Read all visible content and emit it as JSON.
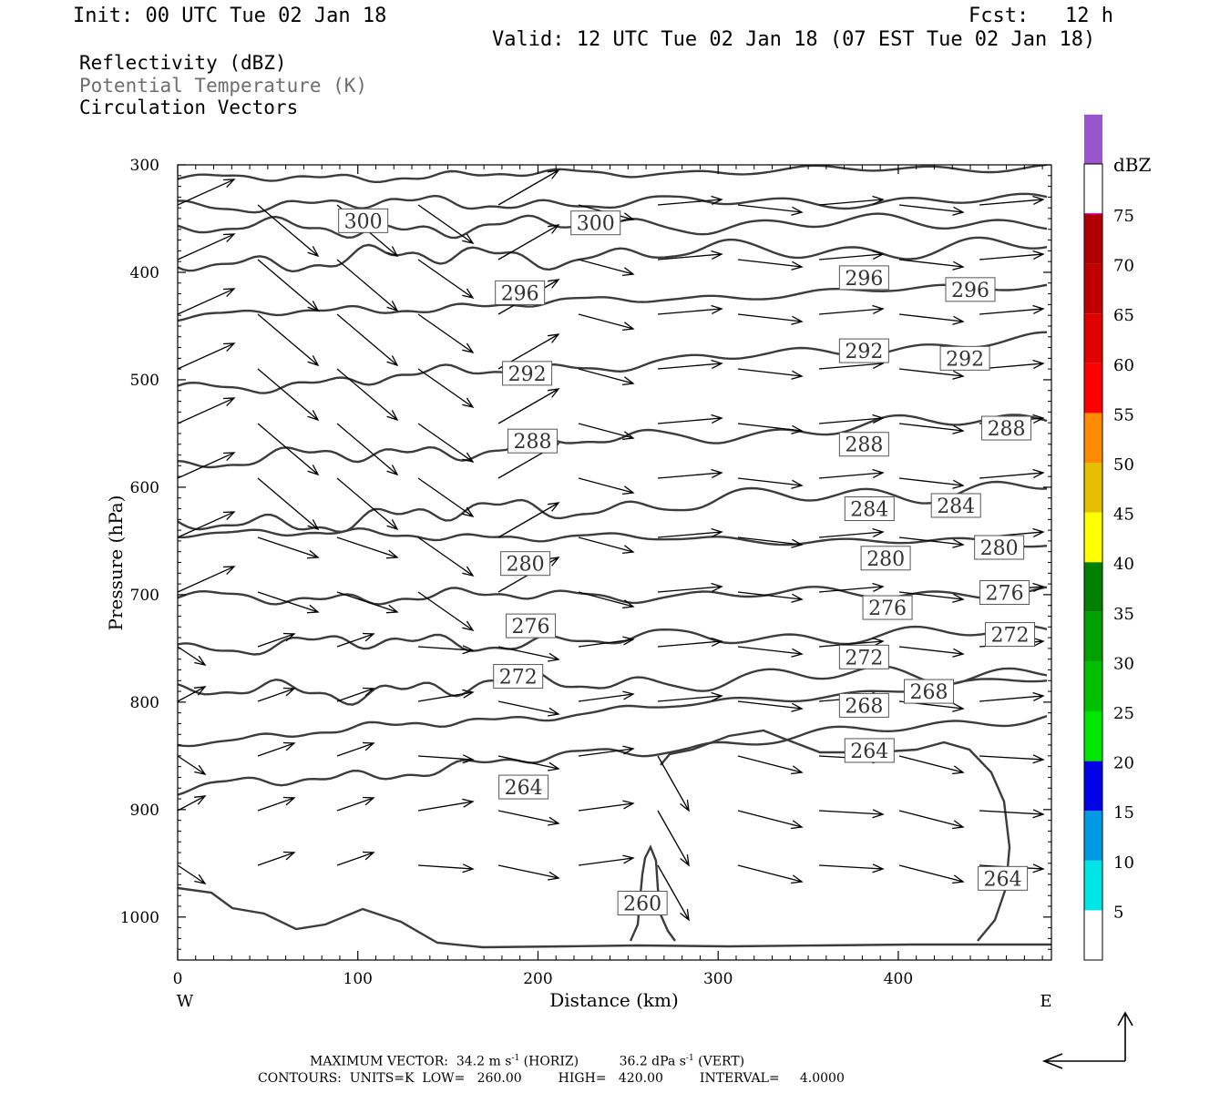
{
  "header": {
    "init": "Init: 00 UTC Tue 02 Jan 18",
    "fcst": "Fcst:   12 h",
    "valid": "Valid: 12 UTC Tue 02 Jan 18 (07 EST Tue 02 Jan 18)"
  },
  "fields": {
    "reflectivity": "Reflectivity (dBZ)",
    "theta": "Potential Temperature (K)",
    "vectors": "Circulation Vectors"
  },
  "colors": {
    "contour": "#3c3c3c",
    "vector": "#000000",
    "theta_legend": "#6e6e6e"
  },
  "chart_data": {
    "type": "contour",
    "xlabel": "Distance (km)",
    "ylabel": "Pressure (hPa)",
    "xlim": [
      0,
      485
    ],
    "ylim": [
      1040,
      300
    ],
    "x_ticks": [
      0,
      100,
      200,
      300,
      400
    ],
    "y_ticks": [
      300,
      400,
      500,
      600,
      700,
      800,
      900,
      1000
    ],
    "x_ends": {
      "left": "W",
      "right": "E"
    },
    "contour_labels": [
      {
        "v": "300",
        "x": 103,
        "p": 352
      },
      {
        "v": "300",
        "x": 232,
        "p": 354
      },
      {
        "v": "296",
        "x": 190,
        "p": 419
      },
      {
        "v": "296",
        "x": 381,
        "p": 405
      },
      {
        "v": "296",
        "x": 440,
        "p": 416
      },
      {
        "v": "292",
        "x": 194,
        "p": 494
      },
      {
        "v": "292",
        "x": 381,
        "p": 473
      },
      {
        "v": "292",
        "x": 437,
        "p": 480
      },
      {
        "v": "288",
        "x": 197,
        "p": 557
      },
      {
        "v": "288",
        "x": 381,
        "p": 560
      },
      {
        "v": "288",
        "x": 460,
        "p": 545
      },
      {
        "v": "284",
        "x": 384,
        "p": 620
      },
      {
        "v": "284",
        "x": 432,
        "p": 617
      },
      {
        "v": "280",
        "x": 193,
        "p": 671
      },
      {
        "v": "280",
        "x": 393,
        "p": 666
      },
      {
        "v": "280",
        "x": 456,
        "p": 656
      },
      {
        "v": "276",
        "x": 196,
        "p": 729
      },
      {
        "v": "276",
        "x": 394,
        "p": 712
      },
      {
        "v": "276",
        "x": 459,
        "p": 698
      },
      {
        "v": "272",
        "x": 189,
        "p": 776
      },
      {
        "v": "272",
        "x": 381,
        "p": 758
      },
      {
        "v": "272",
        "x": 462,
        "p": 737
      },
      {
        "v": "268",
        "x": 381,
        "p": 803
      },
      {
        "v": "268",
        "x": 417,
        "p": 790
      },
      {
        "v": "264",
        "x": 192,
        "p": 879
      },
      {
        "v": "264",
        "x": 384,
        "p": 845
      },
      {
        "v": "264",
        "x": 458,
        "p": 964
      },
      {
        "v": "260",
        "x": 258,
        "p": 987
      }
    ],
    "colorbar": {
      "title": "dBZ",
      "ticks": [
        "5",
        "10",
        "15",
        "20",
        "25",
        "30",
        "35",
        "40",
        "45",
        "50",
        "55",
        "60",
        "65",
        "70",
        "75"
      ],
      "colors": [
        "#00e5e5",
        "#0099e6",
        "#0000e6",
        "#00e600",
        "#00c000",
        "#00a000",
        "#008000",
        "#ffff00",
        "#e6c000",
        "#ff8c00",
        "#ff0000",
        "#e00000",
        "#c00000",
        "#b00000",
        "#ff00ff",
        "#9955cc",
        "#ffffff"
      ]
    },
    "footer": {
      "line1_prefix": "MAXIMUM VECTOR:  34.2 m s",
      "exp1": "-1",
      "line1_mid": " (HORIZ)          36.2 dPa s",
      "exp2": "-1",
      "line1_suffix": " (VERT)",
      "line2": "CONTOURS:  UNITS=K  LOW=   260.00         HIGH=   420.00         INTERVAL=     4.0000"
    }
  }
}
